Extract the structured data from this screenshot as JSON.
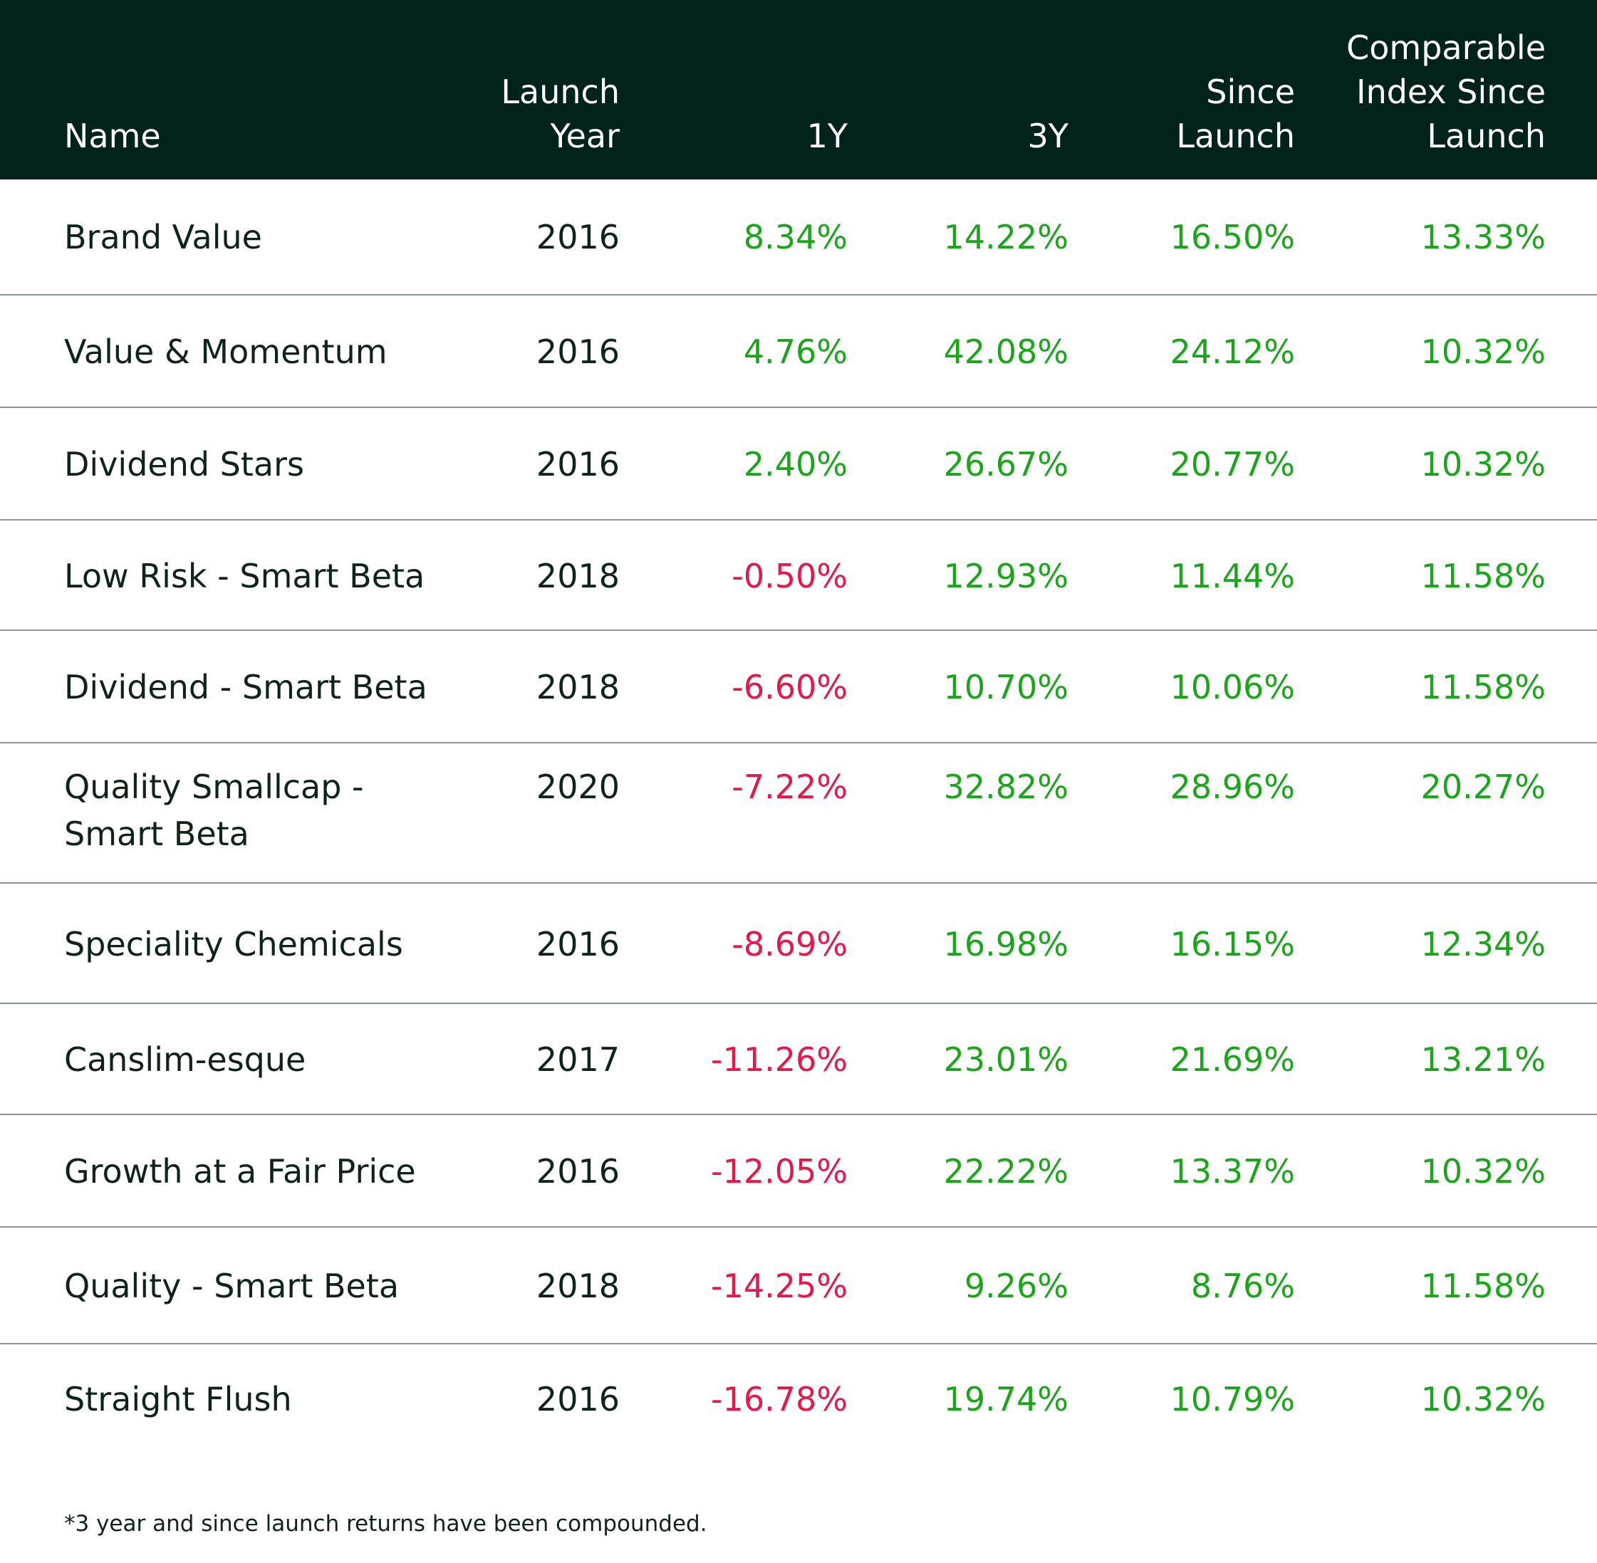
{
  "chart_data": {
    "type": "table",
    "columns": [
      "Name",
      "Launch\nYear",
      "1Y",
      "3Y",
      "Since\nLaunch",
      "Comparable\nIndex Since\nLaunch"
    ],
    "rows": [
      {
        "name": "Brand Value",
        "launch_year": "2016",
        "y1": "8.34%",
        "y3": "14.22%",
        "since_launch": "16.50%",
        "comparable": "13.33%"
      },
      {
        "name": "Value & Momentum",
        "launch_year": "2016",
        "y1": "4.76%",
        "y3": "42.08%",
        "since_launch": "24.12%",
        "comparable": "10.32%"
      },
      {
        "name": "Dividend Stars",
        "launch_year": "2016",
        "y1": "2.40%",
        "y3": "26.67%",
        "since_launch": "20.77%",
        "comparable": "10.32%"
      },
      {
        "name": "Low Risk - Smart Beta",
        "launch_year": "2018",
        "y1": "-0.50%",
        "y3": "12.93%",
        "since_launch": "11.44%",
        "comparable": "11.58%"
      },
      {
        "name": "Dividend - Smart Beta",
        "launch_year": "2018",
        "y1": "-6.60%",
        "y3": "10.70%",
        "since_launch": "10.06%",
        "comparable": "11.58%"
      },
      {
        "name": "Quality Smallcap -\nSmart Beta",
        "launch_year": "2020",
        "y1": "-7.22%",
        "y3": "32.82%",
        "since_launch": "28.96%",
        "comparable": "20.27%"
      },
      {
        "name": "Speciality Chemicals",
        "launch_year": "2016",
        "y1": "-8.69%",
        "y3": "16.98%",
        "since_launch": "16.15%",
        "comparable": "12.34%"
      },
      {
        "name": "Canslim-esque",
        "launch_year": "2017",
        "y1": "-11.26%",
        "y3": "23.01%",
        "since_launch": "21.69%",
        "comparable": "13.21%"
      },
      {
        "name": "Growth at a Fair Price",
        "launch_year": "2016",
        "y1": "-12.05%",
        "y3": "22.22%",
        "since_launch": "13.37%",
        "comparable": "10.32%"
      },
      {
        "name": "Quality - Smart Beta",
        "launch_year": "2018",
        "y1": "-14.25%",
        "y3": "9.26%",
        "since_launch": "8.76%",
        "comparable": "11.58%"
      },
      {
        "name": "Straight Flush",
        "launch_year": "2016",
        "y1": "-16.78%",
        "y3": "19.74%",
        "since_launch": "10.79%",
        "comparable": "10.32%"
      }
    ],
    "positive_color": "#1aa51a",
    "negative_color": "#e8174a",
    "header_bg": "#02231c"
  },
  "footnote": "*3 year and since launch returns have been compounded."
}
